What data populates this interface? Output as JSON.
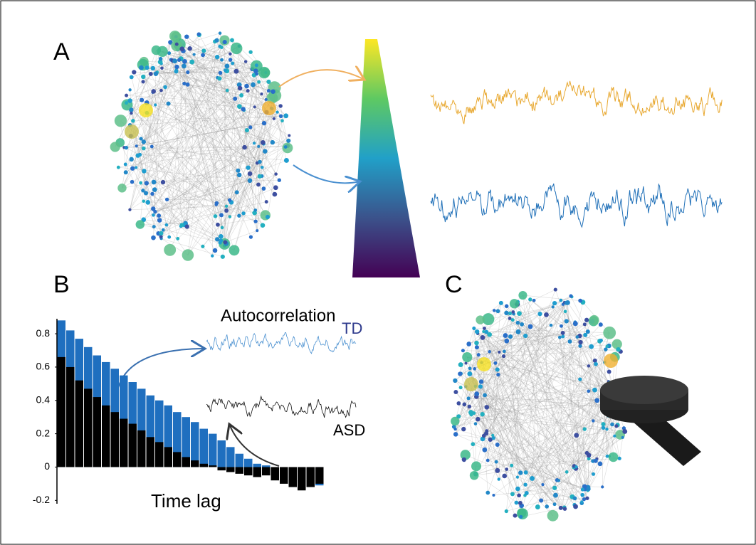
{
  "panels": {
    "a": "A",
    "b": "B",
    "c": "C"
  },
  "chart_data": {
    "type": "bar",
    "annotation": "Autocorrelation",
    "xlabel": "Time lag",
    "series": [
      {
        "name": "TD",
        "color": "#1f6fbf",
        "values": [
          0.88,
          0.82,
          0.77,
          0.72,
          0.67,
          0.63,
          0.59,
          0.55,
          0.51,
          0.47,
          0.43,
          0.4,
          0.37,
          0.33,
          0.3,
          0.27,
          0.23,
          0.2,
          0.16,
          0.12,
          0.08,
          0.05,
          0.02,
          0.01,
          0,
          0,
          0,
          0,
          0,
          -0.11
        ]
      },
      {
        "name": "ASD",
        "color": "#000000",
        "values": [
          0.66,
          0.6,
          0.52,
          0.47,
          0.42,
          0.37,
          0.33,
          0.29,
          0.26,
          0.22,
          0.18,
          0.15,
          0.12,
          0.09,
          0.06,
          0.04,
          0.02,
          0.01,
          -0.02,
          -0.03,
          -0.04,
          -0.05,
          -0.06,
          -0.05,
          -0.08,
          -0.1,
          -0.12,
          -0.14,
          -0.12,
          -0.1
        ]
      }
    ],
    "ylim": [
      -0.22,
      0.89
    ],
    "yticks": [
      -0.2,
      0,
      0.2,
      0.4,
      0.6,
      0.8
    ]
  }
}
